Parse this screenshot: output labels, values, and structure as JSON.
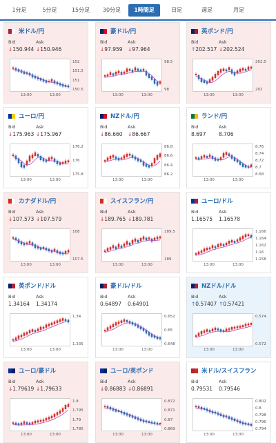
{
  "tabs": [
    {
      "label": "1分足",
      "active": false
    },
    {
      "label": "5分足",
      "active": false
    },
    {
      "label": "15分足",
      "active": false
    },
    {
      "label": "30分足",
      "active": false
    },
    {
      "label": "1時間足",
      "active": true
    },
    {
      "label": "日足",
      "active": false
    },
    {
      "label": "週足",
      "active": false
    },
    {
      "label": "月足",
      "active": false
    }
  ],
  "labels": {
    "bid": "Bid",
    "ask": "Ask"
  },
  "colors": {
    "down": "#d0312d",
    "up": "#2a6db3",
    "ma": "#b84bb8",
    "accent": "#2a6db3"
  },
  "cards": [
    {
      "pair": "米ドル/円",
      "flag": [
        "#b22234",
        "#ffffff"
      ],
      "state": "down",
      "bid": "150.944",
      "ask": "150.946",
      "bid_arrow": "down",
      "ask_arrow": "down",
      "yticks": [
        "152",
        "151.5",
        "151",
        "150.5"
      ],
      "xticks": [
        "13:00",
        "13:00"
      ],
      "trend": [
        0.78,
        0.74,
        0.7,
        0.66,
        0.62,
        0.6,
        0.56,
        0.5,
        0.46,
        0.42,
        0.38,
        0.34,
        0.3,
        0.3,
        0.34,
        0.28,
        0.24,
        0.2,
        0.16,
        0.14,
        0.12
      ]
    },
    {
      "pair": "豪ドル/円",
      "flag": [
        "#012169",
        "#e4002b"
      ],
      "state": "down",
      "bid": "97.959",
      "ask": "97.964",
      "bid_arrow": "down",
      "ask_arrow": "down",
      "yticks": [
        "98.5",
        "98"
      ],
      "xticks": [
        "13:00",
        "13:00"
      ],
      "trend": [
        0.5,
        0.52,
        0.58,
        0.55,
        0.6,
        0.64,
        0.6,
        0.62,
        0.7,
        0.72,
        0.68,
        0.75,
        0.72,
        0.7,
        0.72,
        0.6,
        0.5,
        0.42,
        0.3,
        0.22,
        0.26
      ]
    },
    {
      "pair": "英ポンド/円",
      "flag": [
        "#012169",
        "#c8102e"
      ],
      "state": "down",
      "bid": "202.517",
      "ask": "202.524",
      "bid_arrow": "up",
      "ask_arrow": "down",
      "yticks": [
        "202.5",
        "202"
      ],
      "xticks": [
        "13:00",
        "13:00"
      ],
      "trend": [
        0.55,
        0.45,
        0.35,
        0.3,
        0.26,
        0.32,
        0.4,
        0.5,
        0.6,
        0.68,
        0.72,
        0.7,
        0.76,
        0.66,
        0.58,
        0.64,
        0.7,
        0.74,
        0.72,
        0.78,
        0.8
      ]
    },
    {
      "pair": "ユーロ/円",
      "flag": [
        "#003399",
        "#ffcc00"
      ],
      "state": "neutral",
      "bid": "175.963",
      "ask": "175.967",
      "bid_arrow": "down",
      "ask_arrow": "down",
      "yticks": [
        "176.2",
        "176",
        "175.8"
      ],
      "xticks": [
        "13:00",
        "13:00"
      ],
      "trend": [
        0.7,
        0.62,
        0.5,
        0.36,
        0.3,
        0.42,
        0.58,
        0.66,
        0.74,
        0.7,
        0.6,
        0.54,
        0.5,
        0.56,
        0.6,
        0.52,
        0.44,
        0.4,
        0.42,
        0.46,
        0.48
      ]
    },
    {
      "pair": "NZドル/円",
      "flag": [
        "#012169",
        "#cc142b"
      ],
      "state": "neutral",
      "bid": "86.660",
      "ask": "86.667",
      "bid_arrow": "down",
      "ask_arrow": "down",
      "yticks": [
        "86.8",
        "86.6",
        "86.4",
        "86.2"
      ],
      "xticks": [
        "13:00",
        "13:00"
      ],
      "trend": [
        0.5,
        0.56,
        0.62,
        0.66,
        0.6,
        0.56,
        0.58,
        0.64,
        0.7,
        0.72,
        0.66,
        0.6,
        0.54,
        0.5,
        0.4,
        0.34,
        0.3,
        0.36,
        0.5,
        0.62,
        0.7
      ]
    },
    {
      "pair": "ランド/円",
      "flag": [
        "#007a4d",
        "#ffb612"
      ],
      "state": "neutral",
      "bid": "8.697",
      "ask": "8.706",
      "bid_arrow": "none",
      "ask_arrow": "none",
      "yticks": [
        "8.76",
        "8.74",
        "8.72",
        "8.7",
        "8.68"
      ],
      "xticks": [
        "13:00",
        "13:00"
      ],
      "trend": [
        0.6,
        0.58,
        0.62,
        0.66,
        0.64,
        0.68,
        0.62,
        0.56,
        0.54,
        0.58,
        0.7,
        0.76,
        0.72,
        0.64,
        0.56,
        0.5,
        0.42,
        0.34,
        0.3,
        0.28,
        0.32
      ]
    },
    {
      "pair": "カナダドル/円",
      "flag": [
        "#d52b1e",
        "#ffffff"
      ],
      "state": "down",
      "bid": "107.573",
      "ask": "107.579",
      "bid_arrow": "down",
      "ask_arrow": "down",
      "yticks": [
        "108",
        "107.5"
      ],
      "xticks": [
        "13:00",
        "13:00"
      ],
      "trend": [
        0.78,
        0.74,
        0.66,
        0.6,
        0.56,
        0.58,
        0.62,
        0.56,
        0.48,
        0.44,
        0.4,
        0.42,
        0.38,
        0.34,
        0.3,
        0.34,
        0.28,
        0.24,
        0.22,
        0.26,
        0.3
      ]
    },
    {
      "pair": "スイスフラン/円",
      "flag": [
        "#d52b1e",
        "#ffffff"
      ],
      "state": "down",
      "bid": "189.765",
      "ask": "189.781",
      "bid_arrow": "down",
      "ask_arrow": "down",
      "yticks": [
        "189.5",
        "189"
      ],
      "xticks": [
        "13:00",
        "13:00"
      ],
      "trend": [
        0.3,
        0.36,
        0.4,
        0.46,
        0.42,
        0.5,
        0.46,
        0.52,
        0.6,
        0.56,
        0.64,
        0.7,
        0.66,
        0.72,
        0.78,
        0.74,
        0.76,
        0.7,
        0.74,
        0.78,
        0.8
      ]
    },
    {
      "pair": "ユーロ/ドル",
      "flag": [
        "#003399",
        "#b22234"
      ],
      "state": "neutral",
      "bid": "1.16575",
      "ask": "1.16578",
      "bid_arrow": "none",
      "ask_arrow": "none",
      "yticks": [
        "1.166",
        "1.164",
        "1.162",
        "1.16",
        "1.158"
      ],
      "xticks": [
        "13:00",
        "13:00"
      ],
      "trend": [
        0.2,
        0.24,
        0.28,
        0.34,
        0.38,
        0.4,
        0.46,
        0.44,
        0.5,
        0.54,
        0.52,
        0.56,
        0.62,
        0.66,
        0.64,
        0.68,
        0.74,
        0.8,
        0.86,
        0.88,
        0.84
      ]
    },
    {
      "pair": "英ポンド/ドル",
      "flag": [
        "#012169",
        "#b22234"
      ],
      "state": "neutral",
      "bid": "1.34164",
      "ask": "1.34174",
      "bid_arrow": "none",
      "ask_arrow": "none",
      "yticks": [
        "1.34",
        "1.335"
      ],
      "xticks": [
        "13:00",
        "13:00"
      ],
      "trend": [
        0.16,
        0.2,
        0.26,
        0.3,
        0.36,
        0.4,
        0.46,
        0.5,
        0.48,
        0.52,
        0.58,
        0.6,
        0.66,
        0.7,
        0.74,
        0.78,
        0.82,
        0.86,
        0.9,
        0.88,
        0.84
      ]
    },
    {
      "pair": "豪ドル/ドル",
      "flag": [
        "#012169",
        "#b22234"
      ],
      "state": "neutral",
      "bid": "0.64897",
      "ask": "0.64901",
      "bid_arrow": "none",
      "ask_arrow": "none",
      "yticks": [
        "0.652",
        "0.65",
        "0.648"
      ],
      "xticks": [
        "13:00",
        "13:00"
      ],
      "trend": [
        0.5,
        0.56,
        0.62,
        0.68,
        0.74,
        0.78,
        0.82,
        0.86,
        0.84,
        0.8,
        0.76,
        0.72,
        0.66,
        0.6,
        0.54,
        0.46,
        0.38,
        0.32,
        0.28,
        0.24,
        0.22
      ]
    },
    {
      "pair": "NZドル/ドル",
      "flag": [
        "#012169",
        "#b22234"
      ],
      "state": "up",
      "bid": "0.57407",
      "ask": "0.57421",
      "bid_arrow": "up",
      "ask_arrow": "up",
      "yticks": [
        "0.574",
        "0.572"
      ],
      "xticks": [
        "13:00",
        "13:00"
      ],
      "trend": [
        0.3,
        0.36,
        0.42,
        0.46,
        0.5,
        0.48,
        0.52,
        0.56,
        0.54,
        0.5,
        0.48,
        0.52,
        0.54,
        0.58,
        0.6,
        0.62,
        0.64,
        0.66,
        0.7,
        0.72,
        0.74
      ]
    },
    {
      "pair": "ユーロ/豪ドル",
      "flag": [
        "#003399",
        "#012169"
      ],
      "state": "down",
      "bid": "1.79619",
      "ask": "1.79633",
      "bid_arrow": "down",
      "ask_arrow": "down",
      "yticks": [
        "1.8",
        "1.795",
        "1.79",
        "1.785"
      ],
      "xticks": [
        "13:00",
        "13:00"
      ],
      "trend": [
        0.22,
        0.2,
        0.18,
        0.2,
        0.24,
        0.22,
        0.2,
        0.22,
        0.26,
        0.28,
        0.3,
        0.32,
        0.36,
        0.4,
        0.44,
        0.5,
        0.56,
        0.62,
        0.7,
        0.8,
        0.86
      ]
    },
    {
      "pair": "ユーロ/英ポンド",
      "flag": [
        "#003399",
        "#012169"
      ],
      "state": "down",
      "bid": "0.86883",
      "ask": "0.86891",
      "bid_arrow": "down",
      "ask_arrow": "down",
      "yticks": [
        "0.872",
        "0.871",
        "0.87",
        "0.869"
      ],
      "xticks": [
        "13:00",
        "13:00"
      ],
      "trend": [
        0.82,
        0.8,
        0.76,
        0.72,
        0.68,
        0.66,
        0.62,
        0.58,
        0.54,
        0.5,
        0.46,
        0.42,
        0.38,
        0.34,
        0.3,
        0.28,
        0.26,
        0.24,
        0.22,
        0.2,
        0.2
      ]
    },
    {
      "pair": "米ドル/スイスフラン",
      "flag": [
        "#b22234",
        "#d52b1e"
      ],
      "state": "neutral",
      "bid": "0.79531",
      "ask": "0.79546",
      "bid_arrow": "none",
      "ask_arrow": "none",
      "yticks": [
        "0.802",
        "0.8",
        "0.798",
        "0.796",
        "0.794"
      ],
      "xticks": [
        "13:00",
        "13:00"
      ],
      "trend": [
        0.82,
        0.8,
        0.76,
        0.74,
        0.7,
        0.66,
        0.62,
        0.6,
        0.56,
        0.52,
        0.48,
        0.46,
        0.42,
        0.38,
        0.34,
        0.3,
        0.26,
        0.22,
        0.2,
        0.18,
        0.16
      ]
    }
  ]
}
